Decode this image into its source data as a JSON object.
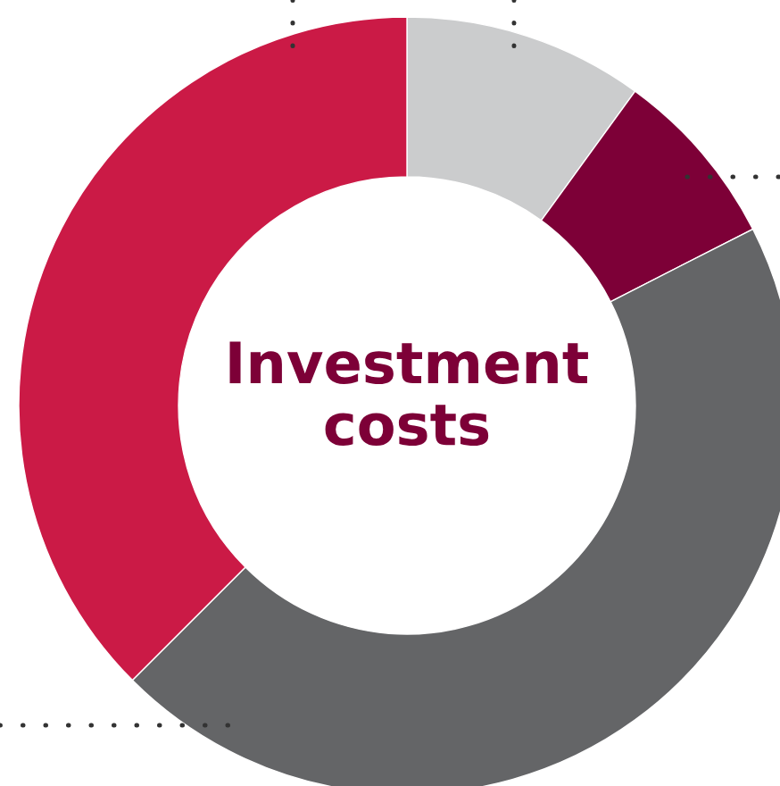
{
  "chart_data": {
    "type": "donut",
    "title": "Investment costs",
    "categories": [
      null,
      null,
      null,
      null
    ],
    "values": [
      10,
      7.5,
      45,
      37.5
    ],
    "colors": [
      "#cbcccd",
      "#7d0037",
      "#646567",
      "#cb1a46"
    ]
  }
}
